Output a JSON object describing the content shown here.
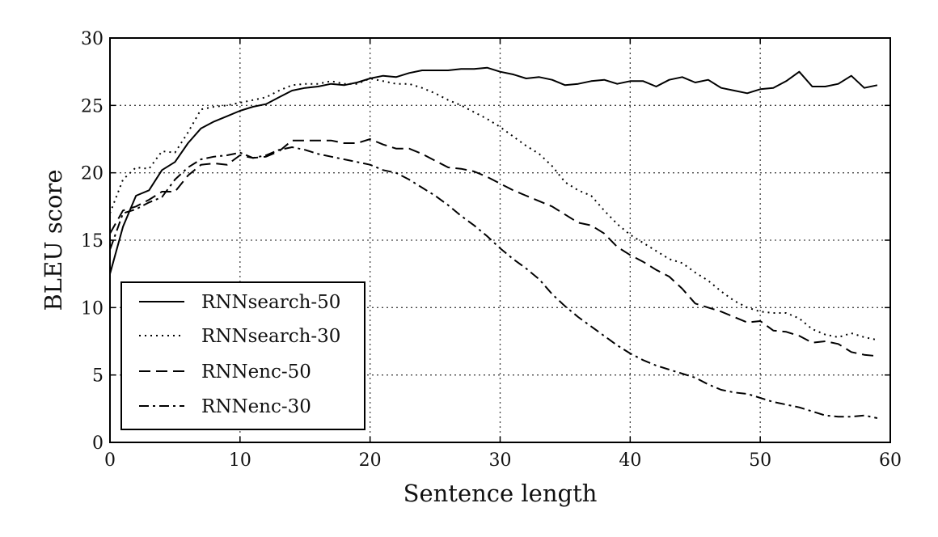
{
  "chart_data": {
    "type": "line",
    "title": "",
    "xlabel": "Sentence length",
    "ylabel": "BLEU score",
    "xlim": [
      0,
      60
    ],
    "ylim": [
      0,
      30
    ],
    "xticks": [
      0,
      10,
      20,
      30,
      40,
      50,
      60
    ],
    "yticks": [
      0,
      5,
      10,
      15,
      20,
      25,
      30
    ],
    "grid": true,
    "legend_position": "lower-left",
    "series": [
      {
        "name": "RNNsearch-50",
        "style": "solid",
        "x": [
          0,
          1,
          2,
          3,
          4,
          5,
          6,
          7,
          8,
          9,
          10,
          11,
          12,
          13,
          14,
          15,
          16,
          17,
          18,
          19,
          20,
          21,
          22,
          23,
          24,
          25,
          26,
          27,
          28,
          29,
          30,
          31,
          32,
          33,
          34,
          35,
          36,
          37,
          38,
          39,
          40,
          41,
          42,
          43,
          44,
          45,
          46,
          47,
          48,
          49,
          50,
          51,
          52,
          53,
          54,
          55,
          56,
          57,
          58,
          59
        ],
        "y": [
          12.5,
          16.0,
          18.3,
          18.7,
          20.2,
          20.8,
          22.2,
          23.3,
          23.8,
          24.2,
          24.6,
          24.9,
          25.1,
          25.6,
          26.1,
          26.3,
          26.4,
          26.6,
          26.5,
          26.7,
          27.0,
          27.2,
          27.1,
          27.4,
          27.6,
          27.6,
          27.6,
          27.7,
          27.7,
          27.8,
          27.5,
          27.3,
          27.0,
          27.1,
          26.9,
          26.5,
          26.6,
          26.8,
          26.9,
          26.6,
          26.8,
          26.8,
          26.4,
          26.9,
          27.1,
          26.7,
          26.9,
          26.3,
          26.1,
          25.9,
          26.2,
          26.3,
          26.8,
          27.5,
          26.4,
          26.4,
          26.6,
          27.2,
          26.3,
          26.5
        ]
      },
      {
        "name": "RNNsearch-30",
        "style": "dotted",
        "x": [
          0,
          1,
          2,
          3,
          4,
          5,
          6,
          7,
          8,
          9,
          10,
          11,
          12,
          13,
          14,
          15,
          16,
          17,
          18,
          19,
          20,
          21,
          22,
          23,
          24,
          25,
          26,
          27,
          28,
          29,
          30,
          31,
          32,
          33,
          34,
          35,
          36,
          37,
          38,
          39,
          40,
          41,
          42,
          43,
          44,
          45,
          46,
          47,
          48,
          49,
          50,
          51,
          52,
          53,
          54,
          55,
          56,
          57,
          58,
          59
        ],
        "y": [
          17.0,
          19.5,
          20.4,
          20.3,
          21.6,
          21.5,
          23.0,
          24.7,
          24.9,
          25.0,
          25.2,
          25.4,
          25.6,
          26.1,
          26.5,
          26.6,
          26.6,
          26.8,
          26.6,
          26.6,
          27.0,
          26.8,
          26.6,
          26.6,
          26.3,
          25.9,
          25.4,
          25.0,
          24.5,
          24.0,
          23.4,
          22.7,
          22.0,
          21.4,
          20.5,
          19.3,
          18.7,
          18.3,
          17.2,
          16.2,
          15.4,
          14.8,
          14.2,
          13.6,
          13.3,
          12.6,
          12.0,
          11.2,
          10.5,
          10.0,
          9.7,
          9.6,
          9.6,
          9.2,
          8.4,
          8.0,
          7.8,
          8.1,
          7.8,
          7.6
        ]
      },
      {
        "name": "RNNenc-50",
        "style": "dashed",
        "x": [
          0,
          1,
          2,
          3,
          4,
          5,
          6,
          7,
          8,
          9,
          10,
          11,
          12,
          13,
          14,
          15,
          16,
          17,
          18,
          19,
          20,
          21,
          22,
          23,
          24,
          25,
          26,
          27,
          28,
          29,
          30,
          31,
          32,
          33,
          34,
          35,
          36,
          37,
          38,
          39,
          40,
          41,
          42,
          43,
          44,
          45,
          46,
          47,
          48,
          49,
          50,
          51,
          52,
          53,
          54,
          55,
          56,
          57,
          58,
          59
        ],
        "y": [
          15.5,
          17.2,
          17.5,
          18.0,
          18.6,
          18.6,
          19.8,
          20.6,
          20.7,
          20.6,
          21.3,
          21.1,
          21.2,
          21.6,
          22.4,
          22.4,
          22.4,
          22.4,
          22.2,
          22.2,
          22.5,
          22.1,
          21.8,
          21.8,
          21.4,
          20.9,
          20.4,
          20.3,
          20.1,
          19.7,
          19.2,
          18.7,
          18.3,
          17.9,
          17.5,
          16.9,
          16.3,
          16.1,
          15.5,
          14.5,
          13.9,
          13.4,
          12.8,
          12.3,
          11.4,
          10.3,
          10.0,
          9.7,
          9.3,
          8.9,
          9.0,
          8.3,
          8.2,
          7.9,
          7.4,
          7.5,
          7.3,
          6.7,
          6.5,
          6.4
        ]
      },
      {
        "name": "RNNenc-30",
        "style": "dashdot",
        "x": [
          0,
          1,
          2,
          3,
          4,
          5,
          6,
          7,
          8,
          9,
          10,
          11,
          12,
          13,
          14,
          15,
          16,
          17,
          18,
          19,
          20,
          21,
          22,
          23,
          24,
          25,
          26,
          27,
          28,
          29,
          30,
          31,
          32,
          33,
          34,
          35,
          36,
          37,
          38,
          39,
          40,
          41,
          42,
          43,
          44,
          45,
          46,
          47,
          48,
          49,
          50,
          51,
          52,
          53,
          54,
          55,
          56,
          57,
          58,
          59
        ],
        "y": [
          14.3,
          17.0,
          17.3,
          17.8,
          18.2,
          19.5,
          20.4,
          21.0,
          21.2,
          21.3,
          21.5,
          21.1,
          21.3,
          21.7,
          21.9,
          21.7,
          21.4,
          21.2,
          21.0,
          20.8,
          20.6,
          20.2,
          20.0,
          19.5,
          18.9,
          18.3,
          17.6,
          16.8,
          16.1,
          15.3,
          14.4,
          13.6,
          12.9,
          12.1,
          11.0,
          10.1,
          9.3,
          8.6,
          7.9,
          7.2,
          6.6,
          6.1,
          5.7,
          5.4,
          5.1,
          4.8,
          4.3,
          3.9,
          3.7,
          3.6,
          3.3,
          3.0,
          2.8,
          2.6,
          2.3,
          2.0,
          1.9,
          1.9,
          2.0,
          1.8
        ]
      }
    ]
  }
}
